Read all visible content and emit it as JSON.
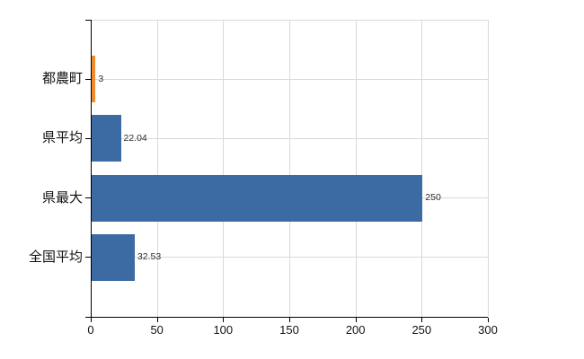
{
  "chart_data": {
    "type": "bar",
    "orientation": "horizontal",
    "title": "",
    "xlabel": "",
    "ylabel": "",
    "categories": [
      "都農町",
      "県平均",
      "県最大",
      "全国平均"
    ],
    "values": [
      3,
      22.04,
      250,
      32.53
    ],
    "value_labels": [
      "3",
      "22.04",
      "250",
      "32.53"
    ],
    "bar_colors": [
      "#ef8a2f",
      "#3c6ba4",
      "#3c6ba4",
      "#3c6ba4"
    ],
    "xlim": [
      0,
      300
    ],
    "x_ticks": [
      0,
      50,
      100,
      150,
      200,
      250,
      300
    ],
    "x_tick_labels": [
      "0",
      "50",
      "100",
      "150",
      "200",
      "250",
      "300"
    ],
    "grid": true,
    "legend": false
  },
  "colors": {
    "background": "#ffffff",
    "grid": "#d9d9d9",
    "axis": "#000000",
    "tick_text": "#111111",
    "value_text": "#2e2e2e",
    "bar_blue": "#3c6ba4",
    "bar_orange": "#ef8a2f"
  }
}
